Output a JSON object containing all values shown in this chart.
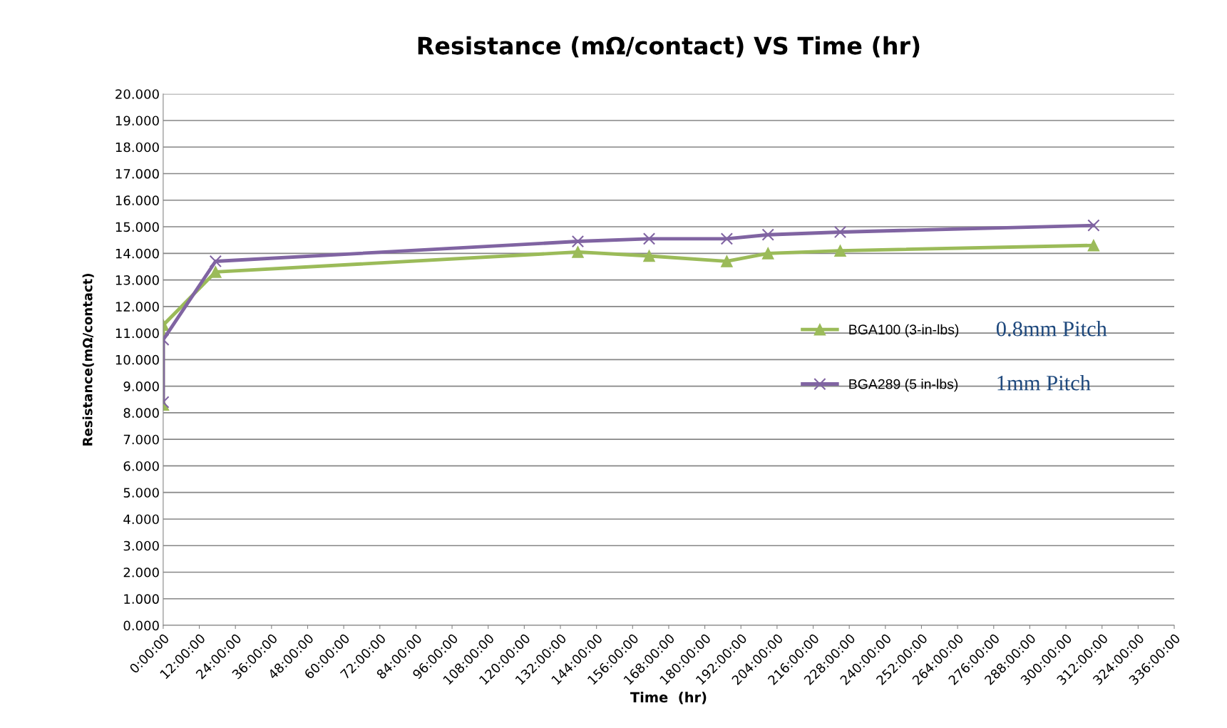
{
  "chart_data": {
    "type": "line",
    "title": "Resistance (mΩ/contact) VS Time (hr)",
    "xlabel": "Time  (hr)",
    "ylabel": "Resistance(mΩ/contact)",
    "series": [
      {
        "name": "BGA100 (3-in-lbs)",
        "color": "#9bbb59",
        "marker": "triangle",
        "x": [
          0,
          0,
          17.4,
          137.8,
          161.5,
          187.3,
          201,
          225,
          309.2
        ],
        "values": [
          8.3,
          11.3,
          13.3,
          14.05,
          13.9,
          13.7,
          14.0,
          14.1,
          14.3
        ]
      },
      {
        "name": "BGA289 (5 in-lbs)",
        "color": "#8064a2",
        "marker": "cross",
        "x": [
          0,
          0,
          17.4,
          137.8,
          161.5,
          187.3,
          201,
          225,
          309.2
        ],
        "values": [
          8.4,
          10.75,
          13.7,
          14.45,
          14.55,
          14.55,
          14.7,
          14.8,
          15.05
        ]
      }
    ],
    "xlim": [
      0,
      336
    ],
    "xticks": [
      {
        "value": 0,
        "label": "0:00:00"
      },
      {
        "value": 12,
        "label": "12:00:00"
      },
      {
        "value": 24,
        "label": "24:00:00"
      },
      {
        "value": 36,
        "label": "36:00:00"
      },
      {
        "value": 48,
        "label": "48:00:00"
      },
      {
        "value": 60,
        "label": "60:00:00"
      },
      {
        "value": 72,
        "label": "72:00:00"
      },
      {
        "value": 84,
        "label": "84:00:00"
      },
      {
        "value": 96,
        "label": "96:00:00"
      },
      {
        "value": 108,
        "label": "108:00:00"
      },
      {
        "value": 120,
        "label": "120:00:00"
      },
      {
        "value": 132,
        "label": "132:00:00"
      },
      {
        "value": 144,
        "label": "144:00:00"
      },
      {
        "value": 156,
        "label": "156:00:00"
      },
      {
        "value": 168,
        "label": "168:00:00"
      },
      {
        "value": 180,
        "label": "180:00:00"
      },
      {
        "value": 192,
        "label": "192:00:00"
      },
      {
        "value": 204,
        "label": "204:00:00"
      },
      {
        "value": 216,
        "label": "216:00:00"
      },
      {
        "value": 228,
        "label": "228:00:00"
      },
      {
        "value": 240,
        "label": "240:00:00"
      },
      {
        "value": 252,
        "label": "252:00:00"
      },
      {
        "value": 264,
        "label": "264:00:00"
      },
      {
        "value": 276,
        "label": "276:00:00"
      },
      {
        "value": 288,
        "label": "288:00:00"
      },
      {
        "value": 300,
        "label": "300:00:00"
      },
      {
        "value": 312,
        "label": "312:00:00"
      },
      {
        "value": 324,
        "label": "324:00:00"
      },
      {
        "value": 336,
        "label": "336:00:00"
      }
    ],
    "ylim": [
      0,
      20
    ],
    "yticks": [
      {
        "value": 0,
        "label": "0.000"
      },
      {
        "value": 1,
        "label": "1.000"
      },
      {
        "value": 2,
        "label": "2.000"
      },
      {
        "value": 3,
        "label": "3.000"
      },
      {
        "value": 4,
        "label": "4.000"
      },
      {
        "value": 5,
        "label": "5.000"
      },
      {
        "value": 6,
        "label": "6.000"
      },
      {
        "value": 7,
        "label": "7.000"
      },
      {
        "value": 8,
        "label": "8.000"
      },
      {
        "value": 9,
        "label": "9.000"
      },
      {
        "value": 10,
        "label": "10.000"
      },
      {
        "value": 11,
        "label": "11.000"
      },
      {
        "value": 12,
        "label": "12.000"
      },
      {
        "value": 13,
        "label": "13.000"
      },
      {
        "value": 14,
        "label": "14.000"
      },
      {
        "value": 15,
        "label": "15.000"
      },
      {
        "value": 16,
        "label": "16.000"
      },
      {
        "value": 17,
        "label": "17.000"
      },
      {
        "value": 18,
        "label": "18.000"
      },
      {
        "value": 19,
        "label": "19.000"
      },
      {
        "value": 20,
        "label": "20.000"
      }
    ],
    "grid": "y",
    "legend": "right",
    "annotations": [
      "0.8mm Pitch",
      "1mm Pitch"
    ]
  }
}
